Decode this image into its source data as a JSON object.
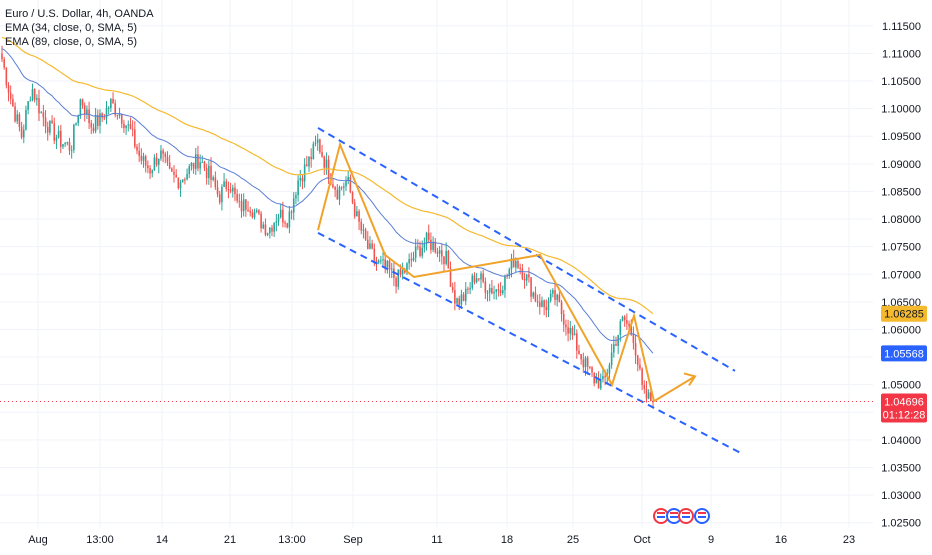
{
  "legend": {
    "title": "Euro / U.S. Dollar, 4h, OANDA",
    "ema1": "EMA (34, close, 0, SMA, 5)",
    "ema2": "EMA (89, close, 0, SMA, 5)"
  },
  "colors": {
    "up": "#26a69a",
    "down": "#ef5350",
    "ema34": "#5b7fd6",
    "ema89": "#f5b92e",
    "drawing_orange": "#f0a229",
    "channel_blue": "#2962ff",
    "badge_ema89": "#f5b92e",
    "badge_ema34": "#2962ff",
    "badge_price": "#f23645"
  },
  "price_axis": {
    "labels": [
      "1.11500",
      "1.11000",
      "1.10500",
      "1.10000",
      "1.09500",
      "1.09000",
      "1.08500",
      "1.08000",
      "1.07500",
      "1.07000",
      "1.06500",
      "1.06000",
      "1.05500",
      "1.05000",
      "1.04500",
      "1.04000",
      "1.03500",
      "1.03000",
      "1.02500"
    ]
  },
  "badges": {
    "ema89": "1.06285",
    "ema34": "1.05568",
    "price": "1.04696",
    "countdown": "01:12:28"
  },
  "time_axis": {
    "labels": [
      "Aug",
      "13:00",
      "14",
      "21",
      "13:00",
      "Sep",
      "11",
      "18",
      "25",
      "Oct",
      "9",
      "16",
      "23"
    ]
  },
  "chart_data": {
    "type": "candlestick",
    "title": "Euro / U.S. Dollar, 4h, OANDA",
    "ylim": [
      1.0235,
      1.1175
    ],
    "series": [
      {
        "name": "EMA (34, close, 0, SMA, 5)",
        "kind": "line",
        "color": "#5b7fd6"
      },
      {
        "name": "EMA (89, close, 0, SMA, 5)",
        "kind": "line",
        "color": "#f5b92e"
      }
    ],
    "last_price": 1.04696,
    "ema34_last": 1.05568,
    "ema89_last": 1.06285,
    "anchors": [
      1.109,
      1.101,
      1.095,
      1.104,
      1.099,
      1.096,
      1.094,
      1.093,
      1.102,
      1.097,
      1.098,
      1.101,
      1.099,
      1.096,
      1.091,
      1.089,
      1.092,
      1.088,
      1.087,
      1.089,
      1.091,
      1.088,
      1.084,
      1.087,
      1.082,
      1.083,
      1.08,
      1.078,
      1.081,
      1.08,
      1.087,
      1.09,
      1.094,
      1.089,
      1.085,
      1.087,
      1.08,
      1.075,
      1.072,
      1.071,
      1.069,
      1.071,
      1.074,
      1.076,
      1.075,
      1.073,
      1.065,
      1.066,
      1.07,
      1.068,
      1.067,
      1.069,
      1.073,
      1.07,
      1.066,
      1.064,
      1.066,
      1.062,
      1.058,
      1.054,
      1.051,
      1.05,
      1.057,
      1.062,
      1.059,
      1.048,
      1.047
    ],
    "channel_upper": [
      [
        1.0965,
        1.0525
      ]
    ],
    "channel_lower": [
      [
        1.0775,
        1.0375
      ]
    ],
    "zigzag": [
      1.078,
      1.0935,
      1.0735,
      1.0695,
      1.0735,
      1.05,
      1.0625,
      1.047
    ],
    "projection": [
      1.047,
      1.0515
    ]
  }
}
